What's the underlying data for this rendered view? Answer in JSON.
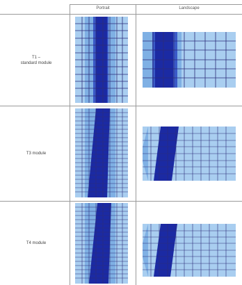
{
  "header": {
    "portrait_label": "Portrait",
    "landscape_label": "Landscape"
  },
  "rows": [
    {
      "label_line1": "T1 –",
      "label_line2": "standard module"
    },
    {
      "label_line1": "T3 module",
      "label_line2": ""
    },
    {
      "label_line1": "T4 module",
      "label_line2": ""
    }
  ],
  "colors": {
    "cell_light": "#a9cef0",
    "cell_mid": "#7fb0e4",
    "shade_dark": "#1b2aa3",
    "shade_mid": "#3a59c7",
    "grid_line": "#2d2d7a",
    "table_border": "#9a9a9a"
  }
}
